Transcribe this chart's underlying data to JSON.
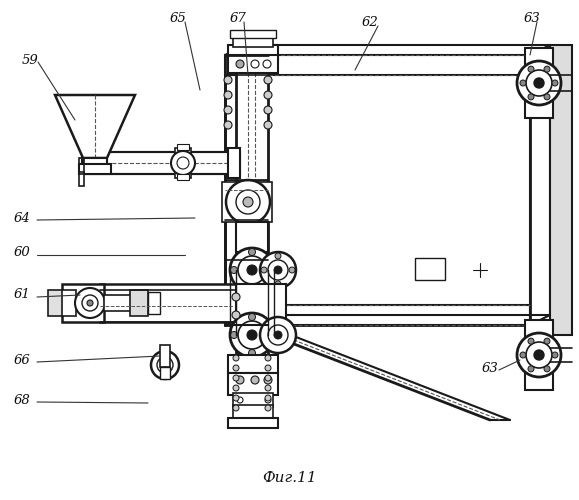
{
  "bg_color": "#ffffff",
  "line_color": "#1a1a1a",
  "title": "Фиг.11",
  "annotations": [
    [
      "59",
      30,
      60
    ],
    [
      "65",
      178,
      18
    ],
    [
      "67",
      238,
      18
    ],
    [
      "62",
      370,
      22
    ],
    [
      "63",
      532,
      18
    ],
    [
      "64",
      22,
      218
    ],
    [
      "60",
      22,
      252
    ],
    [
      "61",
      22,
      295
    ],
    [
      "66",
      22,
      360
    ],
    [
      "68",
      22,
      400
    ],
    [
      "63",
      490,
      368
    ]
  ],
  "ann_lines": [
    [
      38,
      62,
      75,
      120
    ],
    [
      185,
      22,
      200,
      90
    ],
    [
      244,
      22,
      248,
      75
    ],
    [
      378,
      26,
      355,
      70
    ],
    [
      537,
      22,
      530,
      55
    ],
    [
      37,
      220,
      195,
      218
    ],
    [
      37,
      255,
      185,
      255
    ],
    [
      37,
      297,
      80,
      295
    ],
    [
      37,
      362,
      160,
      356
    ],
    [
      37,
      402,
      148,
      403
    ],
    [
      499,
      370,
      520,
      360
    ]
  ]
}
